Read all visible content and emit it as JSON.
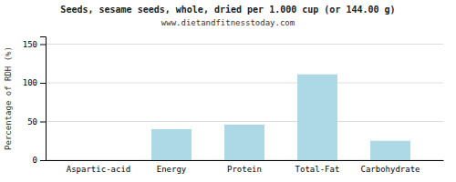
{
  "chart_data": {
    "type": "bar",
    "title": "Seeds, sesame seeds, whole, dried per 1.000 cup (or 144.00 g)",
    "subtitle": "www.dietandfitnesstoday.com",
    "categories": [
      "Aspartic-acid",
      "Energy",
      "Protein",
      "Total-Fat",
      "Carbohydrate"
    ],
    "values": [
      0,
      40,
      46,
      111,
      25
    ],
    "color": "#add8e6",
    "ylabel": "Percentage of RDH (%)",
    "ylim": [
      0,
      160
    ],
    "yticks": [
      0,
      50,
      100,
      150
    ],
    "grid": true
  }
}
